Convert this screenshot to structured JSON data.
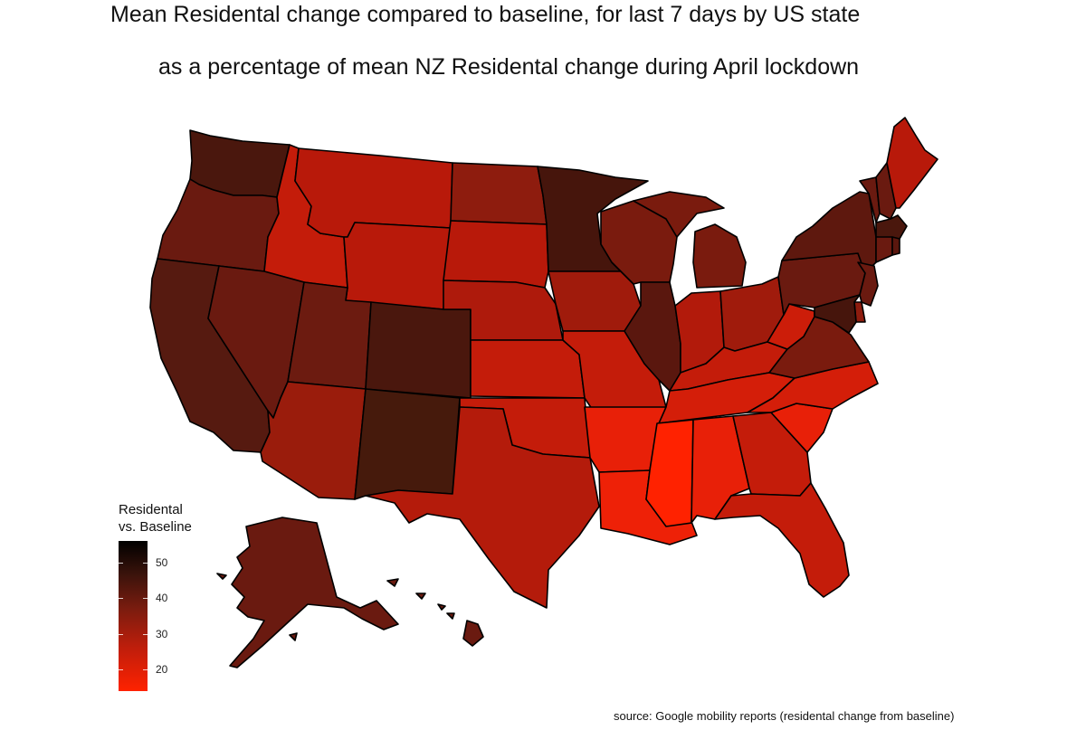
{
  "title": "Mean Residental change compared to baseline, for last 7 days by US state",
  "subtitle": "as a percentage of mean NZ Residental change during April lockdown",
  "legend": {
    "title_line1": "Residental",
    "title_line2": "vs. Baseline",
    "ticks": [
      {
        "value": 50,
        "label": "50"
      },
      {
        "value": 40,
        "label": "40"
      },
      {
        "value": 30,
        "label": "30"
      },
      {
        "value": 20,
        "label": "20"
      }
    ],
    "range": [
      14,
      56
    ],
    "color_low": "#ff2200",
    "color_high": "#000000"
  },
  "source": "source: Google mobility reports (residental change from baseline)",
  "states": {
    "WA": {
      "fill": "#4a170d"
    },
    "OR": {
      "fill": "#6a1a10"
    },
    "CA": {
      "fill": "#561a10"
    },
    "ID": {
      "fill": "#c41c0a"
    },
    "NV": {
      "fill": "#6a1a10"
    },
    "MT": {
      "fill": "#b8190a"
    },
    "WY": {
      "fill": "#b8190a"
    },
    "UT": {
      "fill": "#6c1b10"
    },
    "AZ": {
      "fill": "#9a1c0c"
    },
    "CO": {
      "fill": "#4a170d"
    },
    "NM": {
      "fill": "#461a0c"
    },
    "ND": {
      "fill": "#8e1c0e"
    },
    "SD": {
      "fill": "#b8190a"
    },
    "NE": {
      "fill": "#ae1a0c"
    },
    "KS": {
      "fill": "#c41c0a"
    },
    "OK": {
      "fill": "#c41c0a"
    },
    "TX": {
      "fill": "#b41b0b"
    },
    "MN": {
      "fill": "#46150c"
    },
    "IA": {
      "fill": "#a01b0c"
    },
    "MO": {
      "fill": "#c41c0a"
    },
    "AR": {
      "fill": "#e82008"
    },
    "LA": {
      "fill": "#ee2107"
    },
    "WI": {
      "fill": "#7a1b0e"
    },
    "IL": {
      "fill": "#5a170e"
    },
    "MI": {
      "fill": "#7a1b0e"
    },
    "IN": {
      "fill": "#b21a0b"
    },
    "OH": {
      "fill": "#a01b0c"
    },
    "KY": {
      "fill": "#c41c0a"
    },
    "TN": {
      "fill": "#d41e09"
    },
    "MS": {
      "fill": "#ff2200"
    },
    "AL": {
      "fill": "#e82008"
    },
    "GA": {
      "fill": "#c41c0a"
    },
    "FL": {
      "fill": "#c41c0a"
    },
    "SC": {
      "fill": "#e82008"
    },
    "NC": {
      "fill": "#d41e09"
    },
    "VA": {
      "fill": "#7a1b0e"
    },
    "WV": {
      "fill": "#cc1d09"
    },
    "PA": {
      "fill": "#6a1a10"
    },
    "NY": {
      "fill": "#5e180e"
    },
    "VT": {
      "fill": "#6a1a10"
    },
    "NH": {
      "fill": "#6a1a10"
    },
    "ME": {
      "fill": "#b8190a"
    },
    "MA": {
      "fill": "#4a170d"
    },
    "CT": {
      "fill": "#6a1a10"
    },
    "RI": {
      "fill": "#5a170e"
    },
    "NJ": {
      "fill": "#6a1a10"
    },
    "DE": {
      "fill": "#8e1c0e"
    },
    "MD": {
      "fill": "#46150c"
    },
    "AK": {
      "fill": "#6a1a10"
    },
    "HI": {
      "fill": "#6a1a10"
    }
  }
}
